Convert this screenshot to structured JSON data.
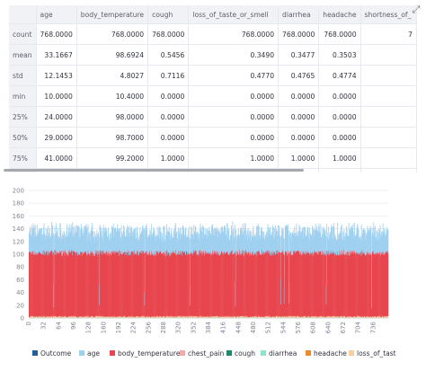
{
  "dataframe": {
    "columns": [
      "age",
      "body_temperature",
      "cough",
      "loss_of_taste_or_smell",
      "diarrhea",
      "headache",
      "shortness_of_"
    ],
    "rows": [
      {
        "index": "count",
        "cells": [
          "768.0000",
          "768.0000",
          "768.0000",
          "768.0000",
          "768.0000",
          "768.0000",
          "7"
        ]
      },
      {
        "index": "mean",
        "cells": [
          "33.1667",
          "98.6924",
          "0.5456",
          "0.3490",
          "0.3477",
          "0.3503",
          ""
        ]
      },
      {
        "index": "std",
        "cells": [
          "12.1453",
          "4.8027",
          "0.7116",
          "0.4770",
          "0.4765",
          "0.4774",
          ""
        ]
      },
      {
        "index": "min",
        "cells": [
          "10.0000",
          "10.4000",
          "0.0000",
          "0.0000",
          "0.0000",
          "0.0000",
          ""
        ]
      },
      {
        "index": "25%",
        "cells": [
          "24.0000",
          "98.0000",
          "0.0000",
          "0.0000",
          "0.0000",
          "0.0000",
          ""
        ]
      },
      {
        "index": "50%",
        "cells": [
          "29.0000",
          "98.7000",
          "0.0000",
          "0.0000",
          "0.0000",
          "0.0000",
          ""
        ]
      },
      {
        "index": "75%",
        "cells": [
          "41.0000",
          "99.2000",
          "1.0000",
          "1.0000",
          "1.0000",
          "1.0000",
          ""
        ]
      },
      {
        "index": "max",
        "cells": [
          "85.0000",
          "109.0000",
          "2.0000",
          "1.0000",
          "1.0000",
          "1.0000",
          ""
        ]
      }
    ],
    "expand_icon": "expand-icon"
  },
  "chart_data": {
    "type": "bar",
    "stacked": true,
    "x_count": 768,
    "x_ticks": [
      0,
      32,
      64,
      96,
      128,
      160,
      192,
      224,
      256,
      288,
      320,
      352,
      384,
      416,
      448,
      480,
      512,
      544,
      576,
      608,
      640,
      672,
      704,
      736
    ],
    "ylim": [
      0,
      200
    ],
    "y_ticks": [
      0,
      20,
      40,
      60,
      80,
      100,
      120,
      140,
      160,
      180,
      200
    ],
    "grid": true,
    "legend_position": "bottom",
    "series": [
      {
        "name": "Outcome",
        "color": "#1f5f9e"
      },
      {
        "name": "age",
        "color": "#9fd0f0"
      },
      {
        "name": "body_temperature",
        "color": "#e8464f"
      },
      {
        "name": "chest_pain",
        "color": "#f6a8a8"
      },
      {
        "name": "cough",
        "color": "#1b8a6b"
      },
      {
        "name": "diarrhea",
        "color": "#8fe3c9"
      },
      {
        "name": "headache",
        "color": "#ef8b2c"
      },
      {
        "name": "loss_of_tast",
        "color": "#f7cf9c"
      }
    ],
    "summary": {
      "age_mean": 33.1667,
      "body_temperature_mean": 98.6924,
      "body_temperature_min": 10.4,
      "body_temperature_max": 109.0
    }
  }
}
